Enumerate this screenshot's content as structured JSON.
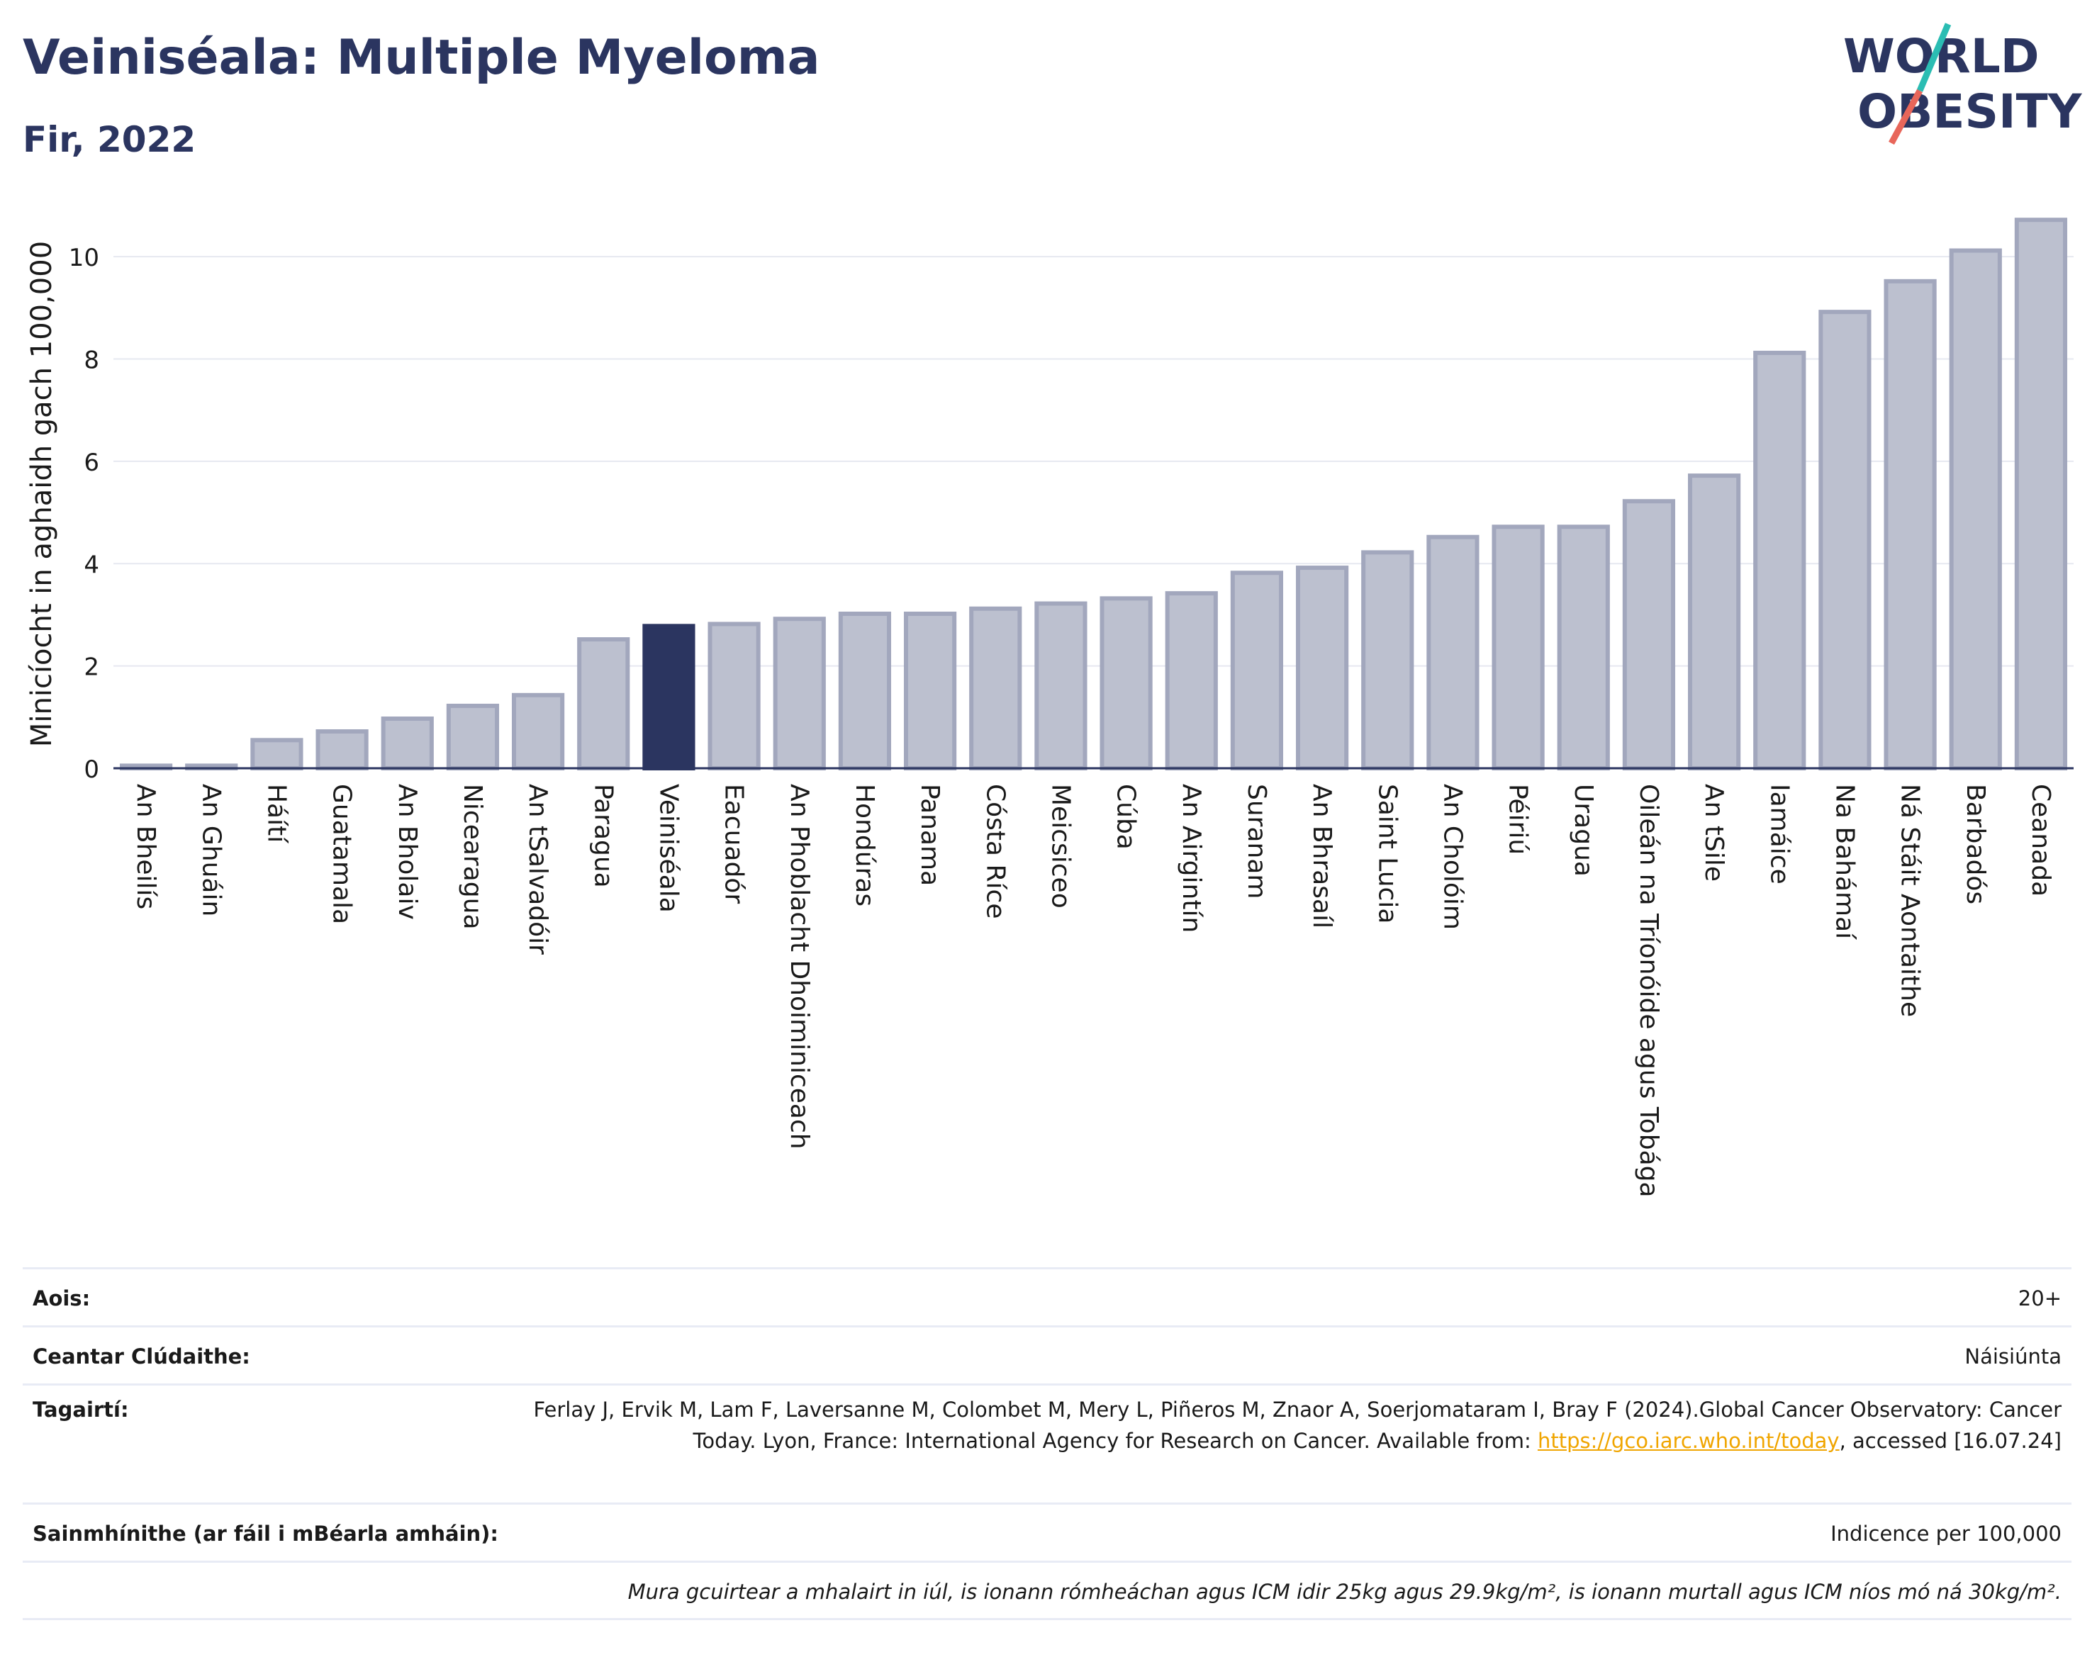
{
  "title": "Veiniséala: Multiple Myeloma",
  "subtitle": "Fir, 2022",
  "logo": {
    "line1": "WORLD",
    "line2": "OBESITY"
  },
  "colors": {
    "highlight": "#2b3560",
    "bar": "#bcc0cf",
    "bar_edge": "#a2a7bd",
    "accent_teal": "#2bbdb3",
    "accent_red": "#e8665a"
  },
  "chart_data": {
    "type": "bar",
    "ylabel": "Minicíocht in aghaidh gach 100,000",
    "ylim": [
      0,
      11
    ],
    "yticks": [
      0,
      2,
      4,
      6,
      8,
      10
    ],
    "grid": true,
    "highlight": "Veiniséala",
    "categories": [
      "An Bheilís",
      "An Ghuáin",
      "Háítí",
      "Guatamala",
      "An Bholaiv",
      "Nicearagua",
      "An tSalvadóir",
      "Paragua",
      "Veiniséala",
      "Eacuadór",
      "An Phoblacht Dhoiminiceach",
      "Hondúras",
      "Panama",
      "Cósta Ríce",
      "Meicsiceo",
      "Cúba",
      "An Airgintín",
      "Suranam",
      "An Bhrasaíl",
      "Saint Lucia",
      "An Cholóim",
      "Péiriú",
      "Uragua",
      "Oileán na Tríonóide agus Tobága",
      "An tSile",
      "Iamáice",
      "Na Bahámaí",
      "Ná Stáit Aontaithe",
      "Barbadós",
      "Ceanada"
    ],
    "values": [
      0.05,
      0.05,
      0.55,
      0.72,
      0.97,
      1.22,
      1.43,
      2.52,
      2.78,
      2.82,
      2.92,
      3.02,
      3.02,
      3.12,
      3.22,
      3.32,
      3.42,
      3.82,
      3.92,
      4.22,
      4.52,
      4.72,
      4.72,
      5.22,
      5.72,
      8.12,
      8.92,
      9.52,
      10.12,
      10.72
    ]
  },
  "info": {
    "age_label": "Aois:",
    "age_value": "20+",
    "area_label": "Ceantar Clúdaithe:",
    "area_value": "Náisiúnta",
    "ref_label": "Tagairtí:",
    "ref_text_1": "Ferlay J, Ervik M, Lam F, Laversanne M, Colombet M, Mery L, Piñeros M, Znaor A, Soerjomataram I, Bray F (2024).Global Cancer Observatory: Cancer Today. Lyon, France: International Agency for Research on Cancer. Available from: ",
    "ref_link": "https://gco.iarc.who.int/today",
    "ref_text_2": ", accessed [16.07.24]",
    "def_label": "Sainmhínithe (ar fáil i mBéarla amháin):",
    "def_value": "Indicence per 100,000",
    "note": "Mura gcuirtear a mhalairt in iúl, is ionann rómheáchan agus ICM idir 25kg agus 29.9kg/m², is ionann murtall agus ICM níos mó ná 30kg/m²."
  }
}
